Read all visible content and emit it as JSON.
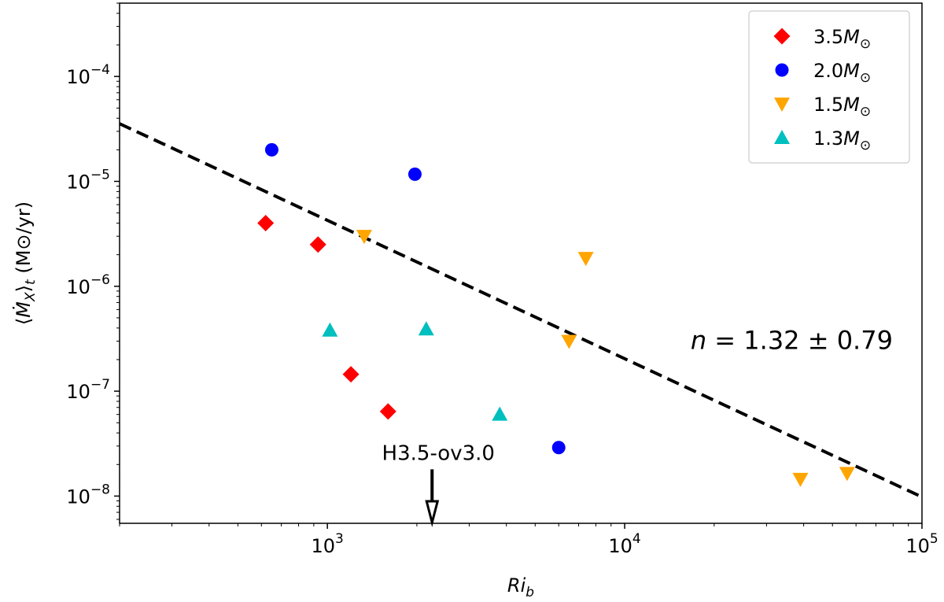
{
  "chart_data": {
    "type": "scatter",
    "xscale": "log",
    "yscale": "log",
    "xlim": [
      200,
      100000
    ],
    "ylim": [
      5.5e-09,
      0.0005
    ],
    "xlabel": {
      "base": "Ri",
      "sub": "b"
    },
    "ylabel": {
      "prefix": "⟨",
      "main": "Ṁ",
      "sub1": "X",
      "mid": "⟩",
      "sub2": "t",
      "units": " (M⊙/yr)"
    },
    "x_ticks": [
      {
        "value": 1000,
        "base": "10",
        "exp": "3"
      },
      {
        "value": 10000,
        "base": "10",
        "exp": "4"
      },
      {
        "value": 100000,
        "base": "10",
        "exp": "5"
      }
    ],
    "y_ticks": [
      {
        "value": 1e-08,
        "base": "10",
        "exp": "−8"
      },
      {
        "value": 1e-07,
        "base": "10",
        "exp": "−7"
      },
      {
        "value": 1e-06,
        "base": "10",
        "exp": "−6"
      },
      {
        "value": 1e-05,
        "base": "10",
        "exp": "−5"
      },
      {
        "value": 0.0001,
        "base": "10",
        "exp": "−4"
      }
    ],
    "series": [
      {
        "name": "3.5M⊙",
        "label_value": "3.5",
        "label_sym": "M",
        "label_sub": "⊙",
        "marker": "diamond",
        "color": "#ff0000",
        "points": [
          [
            620,
            4e-06
          ],
          [
            930,
            2.5e-06
          ],
          [
            1200,
            1.45e-07
          ],
          [
            1600,
            6.4e-08
          ]
        ]
      },
      {
        "name": "2.0M⊙",
        "label_value": "2.0",
        "label_sym": "M",
        "label_sub": "⊙",
        "marker": "circle",
        "color": "#0000ff",
        "points": [
          [
            650,
            2e-05
          ],
          [
            1970,
            1.17e-05
          ],
          [
            6000,
            2.9e-08
          ]
        ]
      },
      {
        "name": "1.5M⊙",
        "label_value": "1.5",
        "label_sym": "M",
        "label_sub": "⊙",
        "marker": "triangle-down",
        "color": "#ffa500",
        "points": [
          [
            1330,
            3e-06
          ],
          [
            7400,
            1.85e-06
          ],
          [
            6500,
            3e-07
          ],
          [
            39000,
            1.45e-08
          ],
          [
            56000,
            1.65e-08
          ]
        ]
      },
      {
        "name": "1.3M⊙",
        "label_value": "1.3",
        "label_sym": "M",
        "label_sub": "⊙",
        "marker": "triangle-up",
        "color": "#00bfbf",
        "points": [
          [
            1020,
            3.8e-07
          ],
          [
            2150,
            3.9e-07
          ],
          [
            3800,
            6e-08
          ]
        ]
      }
    ],
    "fit_line": {
      "style": "dashed",
      "color": "#000000",
      "from": [
        200,
        3.55e-05
      ],
      "to": [
        100000,
        9.8e-09
      ]
    },
    "fit_annotation": {
      "n_sym": "n",
      "text": " = 1.32 ± 0.79",
      "x": 20000,
      "y": 3e-07
    },
    "arrow_annotation": {
      "text": "H3.5-ov3.0",
      "x": 2250,
      "y_tail": 1.8e-08,
      "y_head": 5.5e-09
    },
    "legend_position": "upper right"
  }
}
